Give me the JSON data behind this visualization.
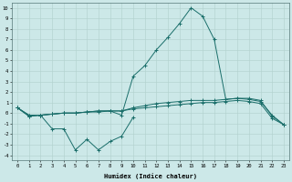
{
  "xlabel": "Humidex (Indice chaleur)",
  "bg_color": "#cce8e8",
  "grid_color": "#b0d0cc",
  "line_color": "#1a6e6a",
  "x_values": [
    0,
    1,
    2,
    3,
    4,
    5,
    6,
    7,
    8,
    9,
    10,
    11,
    12,
    13,
    14,
    15,
    16,
    17,
    18,
    19,
    20,
    21,
    22,
    23
  ],
  "line_peak": [
    0.5,
    -0.3,
    -0.2,
    -0.1,
    0.0,
    0.0,
    0.1,
    0.2,
    0.2,
    -0.2,
    3.5,
    4.5,
    6.0,
    7.2,
    8.5,
    10.0,
    9.2,
    7.0,
    1.3,
    1.4,
    1.4,
    1.2,
    -0.3,
    -1.1
  ],
  "line_mid": [
    0.5,
    -0.2,
    -0.2,
    -0.1,
    0.0,
    0.0,
    0.1,
    0.2,
    0.2,
    0.2,
    0.5,
    0.7,
    0.9,
    1.0,
    1.1,
    1.2,
    1.2,
    1.2,
    1.3,
    1.4,
    1.3,
    1.1,
    -0.2,
    -1.1
  ],
  "line_low": [
    0.5,
    -0.3,
    -0.2,
    -1.5,
    -1.5,
    -3.5,
    -2.5,
    -3.5,
    -2.7,
    -2.2,
    -0.4,
    null,
    null,
    null,
    null,
    null,
    null,
    null,
    null,
    null,
    null,
    null,
    null,
    null
  ],
  "line_flat": [
    0.5,
    -0.2,
    -0.2,
    -0.1,
    0.0,
    0.0,
    0.1,
    0.1,
    0.2,
    0.2,
    0.4,
    0.5,
    0.6,
    0.7,
    0.8,
    0.9,
    1.0,
    1.0,
    1.1,
    1.2,
    1.1,
    0.9,
    -0.5,
    -1.1
  ],
  "ylim": [
    -4.5,
    10.5
  ],
  "yticks": [
    -4,
    -3,
    -2,
    -1,
    0,
    1,
    2,
    3,
    4,
    5,
    6,
    7,
    8,
    9,
    10
  ],
  "figsize": [
    3.2,
    2.0
  ],
  "dpi": 100
}
